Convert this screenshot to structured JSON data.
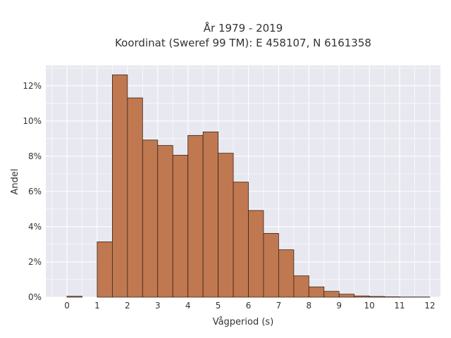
{
  "chart_data": {
    "type": "bar",
    "title": [
      "År 1979 - 2019",
      "Koordinat (Sweref 99 TM): E 458107, N 6161358"
    ],
    "xlabel": "Vågperiod (s)",
    "ylabel": "Andel",
    "xlim": [
      -0.7,
      12.35
    ],
    "ylim": [
      0,
      0.1315
    ],
    "bin_width": 0.5,
    "bin_starts": [
      0,
      0.5,
      1,
      1.5,
      2,
      2.5,
      3,
      3.5,
      4,
      4.5,
      5,
      5.5,
      6,
      6.5,
      7,
      7.5,
      8,
      8.5,
      9,
      9.5,
      10,
      10.5,
      11,
      11.5
    ],
    "values": [
      0.0005,
      0.0,
      0.0314,
      0.1262,
      0.1131,
      0.0892,
      0.0861,
      0.0806,
      0.0918,
      0.0938,
      0.0817,
      0.0653,
      0.0492,
      0.0362,
      0.0269,
      0.0121,
      0.0058,
      0.0033,
      0.0017,
      0.0007,
      0.0004,
      0.0002,
      0.0001,
      0.0001
    ],
    "x_ticks": [
      0,
      1,
      2,
      3,
      4,
      5,
      6,
      7,
      8,
      9,
      10,
      11,
      12
    ],
    "x_tick_labels": [
      "0",
      "1",
      "2",
      "3",
      "4",
      "5",
      "6",
      "7",
      "8",
      "9",
      "10",
      "11",
      "12"
    ],
    "y_ticks": [
      0,
      0.02,
      0.04,
      0.06,
      0.08,
      0.1,
      0.12
    ],
    "y_tick_labels": [
      "0%",
      "2%",
      "4%",
      "6%",
      "8%",
      "10%",
      "12%"
    ],
    "grid": true,
    "colors": {
      "bar": "#c07850",
      "bar_edge": "#3a2418",
      "plot_bg": "#e8e8f0",
      "grid": "#ffffff"
    }
  }
}
